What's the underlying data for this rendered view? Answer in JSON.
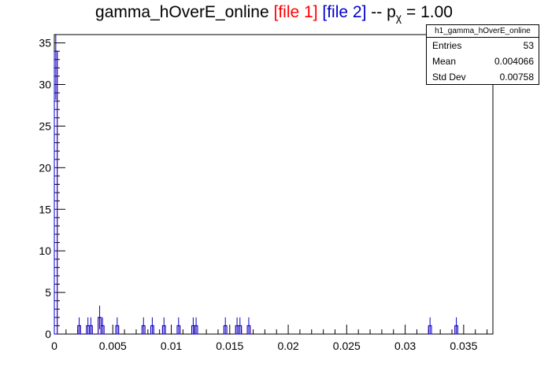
{
  "title": {
    "main": "gamma_hOverE_online",
    "file1": "[file 1]",
    "file2": "[file 2]",
    "sep": "-- p",
    "sub": "χ",
    "eq": "= 1.00"
  },
  "stats": {
    "name": "h1_gamma_hOverE_online",
    "rows": [
      {
        "label": "Entries",
        "value": "53"
      },
      {
        "label": "Mean",
        "value": "0.004066"
      },
      {
        "label": "Std Dev",
        "value": "0.00758"
      }
    ]
  },
  "colors": {
    "file1": "#ff0000",
    "file2": "#0000cc",
    "axis": "#000000"
  },
  "chart_data": {
    "type": "bar",
    "subtype": "overlaid step histograms with error bars",
    "title": "gamma_hOverE_online [file 1] [file 2] -- p_χ = 1.00",
    "xlabel": "",
    "ylabel": "",
    "xlim": [
      0,
      0.0375
    ],
    "ylim": [
      0,
      36
    ],
    "bin_width": 0.00025,
    "x_ticks": [
      {
        "v": 0,
        "label": "0"
      },
      {
        "v": 0.005,
        "label": "0.005"
      },
      {
        "v": 0.01,
        "label": "0.01"
      },
      {
        "v": 0.015,
        "label": "0.015"
      },
      {
        "v": 0.02,
        "label": "0.02"
      },
      {
        "v": 0.025,
        "label": "0.025"
      },
      {
        "v": 0.03,
        "label": "0.03"
      },
      {
        "v": 0.035,
        "label": "0.035"
      }
    ],
    "y_ticks": [
      0,
      5,
      10,
      15,
      20,
      25,
      30,
      35
    ],
    "series": [
      {
        "name": "file 1",
        "color": "#ff0000",
        "bins": [
          {
            "x": 0.0,
            "y": 34
          },
          {
            "x": 0.002,
            "y": 1
          },
          {
            "x": 0.00275,
            "y": 1
          },
          {
            "x": 0.003,
            "y": 1
          },
          {
            "x": 0.00375,
            "y": 2
          },
          {
            "x": 0.004,
            "y": 1
          },
          {
            "x": 0.00525,
            "y": 1
          },
          {
            "x": 0.0075,
            "y": 1
          },
          {
            "x": 0.00825,
            "y": 1
          },
          {
            "x": 0.00925,
            "y": 1
          },
          {
            "x": 0.0105,
            "y": 1
          },
          {
            "x": 0.01175,
            "y": 1
          },
          {
            "x": 0.012,
            "y": 1
          },
          {
            "x": 0.0145,
            "y": 1
          },
          {
            "x": 0.0155,
            "y": 1
          },
          {
            "x": 0.01575,
            "y": 1
          },
          {
            "x": 0.0165,
            "y": 1
          },
          {
            "x": 0.032,
            "y": 1
          },
          {
            "x": 0.03425,
            "y": 1
          }
        ]
      },
      {
        "name": "file 2",
        "color": "#0000cc",
        "bins": [
          {
            "x": 0.0,
            "y": 34
          },
          {
            "x": 0.002,
            "y": 1
          },
          {
            "x": 0.00275,
            "y": 1
          },
          {
            "x": 0.003,
            "y": 1
          },
          {
            "x": 0.00375,
            "y": 2
          },
          {
            "x": 0.004,
            "y": 1
          },
          {
            "x": 0.00525,
            "y": 1
          },
          {
            "x": 0.0075,
            "y": 1
          },
          {
            "x": 0.00825,
            "y": 1
          },
          {
            "x": 0.00925,
            "y": 1
          },
          {
            "x": 0.0105,
            "y": 1
          },
          {
            "x": 0.01175,
            "y": 1
          },
          {
            "x": 0.012,
            "y": 1
          },
          {
            "x": 0.0145,
            "y": 1
          },
          {
            "x": 0.0155,
            "y": 1
          },
          {
            "x": 0.01575,
            "y": 1
          },
          {
            "x": 0.0165,
            "y": 1
          },
          {
            "x": 0.032,
            "y": 1
          },
          {
            "x": 0.03425,
            "y": 1
          }
        ]
      }
    ],
    "grid": false,
    "legend": "none"
  }
}
